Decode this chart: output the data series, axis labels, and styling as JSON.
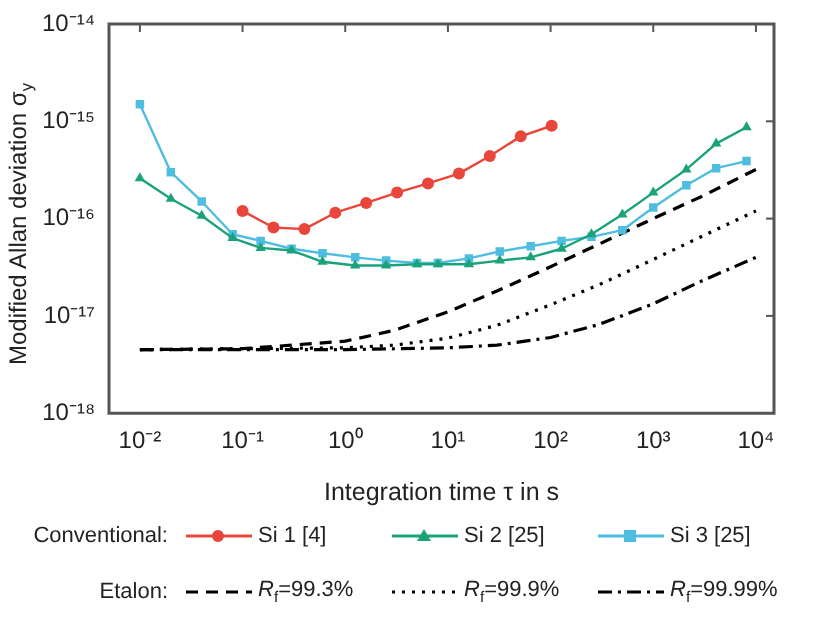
{
  "chart_data": {
    "type": "line",
    "xlabel": "Integration time τ in s",
    "ylabel": "Modified Allan deviation σ$_{y}$",
    "log": "xy",
    "xlim": [
      0.005,
      15000
    ],
    "ylim": [
      1e-18,
      1e-14
    ],
    "xticks": [
      {
        "value": 0.01,
        "label": "10⁻²"
      },
      {
        "value": 0.1,
        "label": "10⁻¹"
      },
      {
        "value": 1,
        "label": "10⁰"
      },
      {
        "value": 10,
        "label": "10¹"
      },
      {
        "value": 100,
        "label": "10²"
      },
      {
        "value": 1000,
        "label": "10³"
      },
      {
        "value": 10000,
        "label": "10⁴"
      }
    ],
    "yticks": [
      {
        "value": 1e-18,
        "label": "10⁻¹⁸"
      },
      {
        "value": 1e-17,
        "label": "10⁻¹⁷"
      },
      {
        "value": 1e-16,
        "label": "10⁻¹⁶"
      },
      {
        "value": 1e-15,
        "label": "10⁻¹⁵"
      },
      {
        "value": 1e-14,
        "label": "10⁻¹⁴"
      }
    ],
    "legend": "bottom",
    "annotations": [
      "Conventional:",
      "Etalon:"
    ],
    "series": [
      {
        "name": "Si 1 [4]",
        "color": "#e8463a",
        "marker": "circle",
        "line_style": "solid",
        "x": [
          0.1,
          0.2,
          0.4,
          0.8,
          1.6,
          3.2,
          6.4,
          12.8,
          25.6,
          51.2,
          102.4
        ],
        "values": [
          1.2e-16,
          8.1e-17,
          7.8e-17,
          1.15e-16,
          1.45e-16,
          1.85e-16,
          2.3e-16,
          2.9e-16,
          4.4e-16,
          7e-16,
          9e-16
        ]
      },
      {
        "name": "Si 2 [25]",
        "color": "#1aa37a",
        "marker": "triangle",
        "line_style": "solid",
        "x": [
          0.01,
          0.02,
          0.04,
          0.08,
          0.15,
          0.3,
          0.6,
          1.25,
          2.5,
          5,
          8,
          16,
          32,
          64,
          128,
          250,
          500,
          1000,
          2100,
          4100,
          8100
        ],
        "values": [
          2.6e-16,
          1.6e-16,
          1.07e-16,
          6.3e-17,
          5e-17,
          4.7e-17,
          3.6e-17,
          3.3e-17,
          3.3e-17,
          3.4e-17,
          3.4e-17,
          3.4e-17,
          3.7e-17,
          4e-17,
          4.9e-17,
          6.9e-17,
          1.1e-16,
          1.85e-16,
          3.2e-16,
          5.9e-16,
          8.7e-16
        ]
      },
      {
        "name": "Si 3 [25]",
        "color": "#4fbde0",
        "marker": "square",
        "line_style": "solid",
        "x": [
          0.01,
          0.02,
          0.04,
          0.08,
          0.15,
          0.3,
          0.6,
          1.25,
          2.5,
          5,
          8,
          16,
          32,
          64,
          128,
          250,
          500,
          1000,
          2100,
          4100,
          8100
        ],
        "values": [
          1.5e-15,
          3e-16,
          1.5e-16,
          6.9e-17,
          5.9e-17,
          4.9e-17,
          4.4e-17,
          4e-17,
          3.7e-17,
          3.5e-17,
          3.5e-17,
          3.9e-17,
          4.6e-17,
          5.2e-17,
          5.9e-17,
          6.5e-17,
          7.6e-17,
          1.3e-16,
          2.2e-16,
          3.3e-16,
          3.9e-16
        ]
      },
      {
        "name": "R$_{f}$=99.3%",
        "color": "#000000",
        "marker": "none",
        "line_style": "dashed",
        "x": [
          0.01,
          0.1,
          1,
          3,
          10,
          30,
          100,
          300,
          1000,
          3000,
          10000
        ],
        "values": [
          4.5e-18,
          4.6e-18,
          5.5e-18,
          7.1e-18,
          1.1e-17,
          1.8e-17,
          3.2e-17,
          5.5e-17,
          1e-16,
          1.7e-16,
          3.2e-16
        ]
      },
      {
        "name": "R$_{f}$=99.9%",
        "color": "#000000",
        "marker": "none",
        "line_style": "dotted",
        "x": [
          0.01,
          1,
          3,
          10,
          30,
          100,
          300,
          1000,
          3000,
          10000
        ],
        "values": [
          4.5e-18,
          4.7e-18,
          5e-18,
          5.9e-18,
          8e-18,
          1.3e-17,
          2.1e-17,
          3.8e-17,
          6.6e-17,
          1.2e-16
        ]
      },
      {
        "name": "R$_{f}$=99.99%",
        "color": "#000000",
        "marker": "none",
        "line_style": "dashdot",
        "x": [
          0.01,
          1,
          10,
          30,
          100,
          300,
          1000,
          3000,
          10000
        ],
        "values": [
          4.5e-18,
          4.5e-18,
          4.7e-18,
          5e-18,
          6e-18,
          8.2e-18,
          1.33e-17,
          2.3e-17,
          4e-17
        ]
      }
    ]
  }
}
